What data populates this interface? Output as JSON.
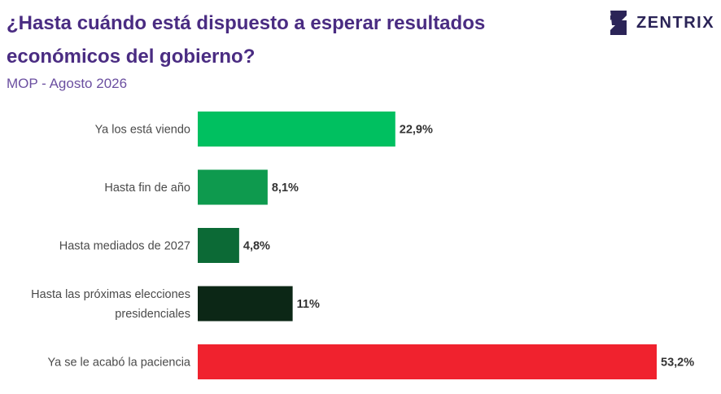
{
  "header": {
    "title": "¿Hasta cuándo está dispuesto a esperar resultados económicos del gobierno?",
    "subtitle": "MOP - Agosto 2026"
  },
  "logo": {
    "text": "ZENTRIX",
    "icon": "zentrix-logo-icon",
    "color": "#2b2457"
  },
  "chart_data": {
    "type": "bar",
    "orientation": "horizontal",
    "categories": [
      [
        "Ya los está viendo"
      ],
      [
        "Hasta fin de año"
      ],
      [
        "Hasta mediados de 2027"
      ],
      [
        "Hasta las próximas elecciones",
        "presidenciales"
      ],
      [
        "Ya se le acabó la paciencia"
      ]
    ],
    "values": [
      22.9,
      8.1,
      4.8,
      11,
      53.2
    ],
    "value_labels": [
      "22,9%",
      "8,1%",
      "4,8%",
      "11%",
      "53,2%"
    ],
    "colors": [
      "#00c060",
      "#0e9a4e",
      "#0c6a36",
      "#0c2716",
      "#f0222e"
    ],
    "xlim": [
      0,
      53.2
    ],
    "grid": false,
    "legend": "none"
  }
}
